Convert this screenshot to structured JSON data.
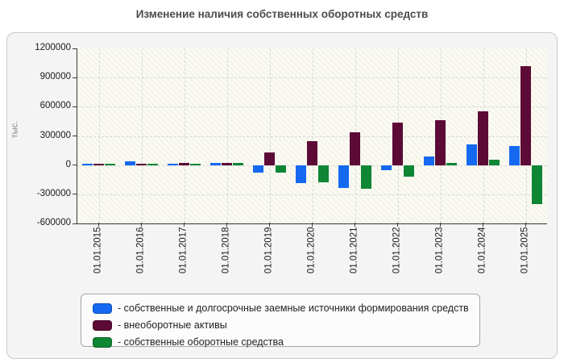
{
  "chart_data": {
    "type": "bar",
    "title": "Изменение наличия собственных оборотных средств",
    "ylabel": "тыс.",
    "ylim": [
      -600000,
      1200000
    ],
    "yticks": [
      "1200000",
      "900000",
      "600000",
      "300000",
      "0",
      "-300000",
      "-600000"
    ],
    "categories": [
      "01.01.2015",
      "01.01.2016",
      "01.01.2017",
      "01.01.2018",
      "01.01.2019",
      "01.01.2020",
      "01.01.2021",
      "01.01.2022",
      "01.01.2023",
      "01.01.2024",
      "01.01.2025"
    ],
    "series": [
      {
        "name": "собственные и долгосрочные заемные источники формирования средств",
        "color": "#1469F0",
        "values": [
          15000,
          40000,
          15000,
          25000,
          -80000,
          -185000,
          -235000,
          -50000,
          85000,
          215000,
          200000
        ]
      },
      {
        "name": "внеоборотные активы",
        "color": "#5C0A36",
        "values": [
          10000,
          10000,
          25000,
          25000,
          130000,
          245000,
          340000,
          440000,
          460000,
          550000,
          1020000
        ]
      },
      {
        "name": "собственные оборотные средства",
        "color": "#0E8634",
        "values": [
          10000,
          10000,
          15000,
          25000,
          -80000,
          -180000,
          -245000,
          -120000,
          20000,
          55000,
          -400000
        ]
      }
    ],
    "legend_prefix": "- ",
    "legend_position": "bottom",
    "grid": true
  }
}
